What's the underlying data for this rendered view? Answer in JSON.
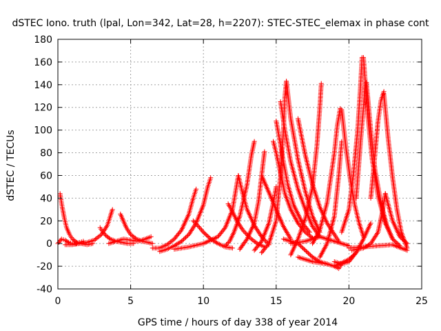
{
  "chart_data": {
    "type": "scatter",
    "title": "dSTEC Iono. truth (lpal, Lon=342, Lat=28, h=2207): STEC-STEC_elemax in phase cont",
    "xlabel": "GPS time / hours of day 338 of year 2014",
    "ylabel": "dSTEC  / TECUs",
    "xlim": [
      0,
      25
    ],
    "ylim": [
      -40,
      180
    ],
    "xticks": [
      0,
      5,
      10,
      15,
      20,
      25
    ],
    "yticks": [
      -40,
      -20,
      0,
      20,
      40,
      60,
      80,
      100,
      120,
      140,
      160,
      180
    ],
    "grid": true,
    "marker": "+",
    "color": "#ff0000",
    "series": [
      {
        "x": [
          0.0,
          0.25,
          0.5,
          0.75,
          1.0,
          1.25,
          1.5,
          1.75
        ],
        "y": [
          0,
          4,
          3,
          1,
          0,
          0,
          1,
          2
        ]
      },
      {
        "x": [
          0.15,
          0.3,
          0.45,
          0.6,
          0.8,
          1.0,
          1.3,
          1.6,
          2.0,
          2.4
        ],
        "y": [
          44,
          32,
          22,
          14,
          8,
          4,
          1,
          0,
          -1,
          0
        ]
      },
      {
        "x": [
          0.5,
          1.0,
          1.5,
          2.0,
          2.5,
          3.0,
          3.4,
          3.6,
          3.75
        ],
        "y": [
          -1,
          -1,
          0,
          1,
          3,
          8,
          16,
          24,
          30
        ]
      },
      {
        "x": [
          2.9,
          3.1,
          3.3,
          3.6,
          4.0,
          4.4,
          4.8,
          5.2
        ],
        "y": [
          14,
          10,
          7,
          4,
          2,
          1,
          0,
          0
        ]
      },
      {
        "x": [
          4.3,
          4.5,
          4.7,
          5.0,
          5.4,
          5.8,
          6.2,
          6.5
        ],
        "y": [
          26,
          20,
          14,
          8,
          4,
          2,
          1,
          0
        ]
      },
      {
        "x": [
          3.5,
          4.0,
          4.5,
          5.0,
          5.5,
          6.0,
          6.4
        ],
        "y": [
          0,
          2,
          4,
          3,
          2,
          4,
          6
        ]
      },
      {
        "x": [
          6.5,
          7.0,
          7.5,
          8.0,
          8.5,
          9.0,
          9.3,
          9.5
        ],
        "y": [
          -4,
          -4,
          -1,
          4,
          12,
          26,
          40,
          48
        ]
      },
      {
        "x": [
          7.0,
          7.5,
          8.0,
          8.5,
          9.0,
          9.5,
          10.0,
          10.3,
          10.5
        ],
        "y": [
          -7,
          -5,
          -2,
          2,
          8,
          18,
          34,
          50,
          58
        ]
      },
      {
        "x": [
          9.3,
          9.6,
          10.0,
          10.5,
          11.0,
          11.5,
          12.0
        ],
        "y": [
          20,
          16,
          10,
          4,
          0,
          -3,
          -4
        ]
      },
      {
        "x": [
          8.0,
          9.0,
          10.0,
          11.0,
          11.5,
          12.0,
          12.2,
          12.4
        ],
        "y": [
          -5,
          -3,
          0,
          6,
          14,
          30,
          45,
          60
        ]
      },
      {
        "x": [
          11.5,
          11.8,
          12.1,
          12.5,
          13.0,
          13.3,
          13.5
        ],
        "y": [
          -2,
          2,
          10,
          24,
          52,
          78,
          90
        ]
      },
      {
        "x": [
          12.4,
          12.7,
          13.0,
          13.5,
          14.0,
          14.5
        ],
        "y": [
          60,
          44,
          30,
          16,
          6,
          -1
        ]
      },
      {
        "x": [
          11.7,
          12.0,
          12.3,
          12.7,
          13.2,
          13.7,
          14.2
        ],
        "y": [
          35,
          28,
          20,
          12,
          5,
          0,
          -3
        ]
      },
      {
        "x": [
          12.5,
          13.0,
          13.5,
          13.8,
          14.0,
          14.2
        ],
        "y": [
          -5,
          4,
          18,
          38,
          60,
          81
        ]
      },
      {
        "x": [
          13.5,
          14.0,
          14.5,
          14.8,
          15.0
        ],
        "y": [
          -6,
          2,
          18,
          36,
          50
        ]
      },
      {
        "x": [
          14.8,
          15.0,
          15.3,
          15.6,
          16.0,
          16.5,
          17.0,
          17.5
        ],
        "y": [
          90,
          80,
          62,
          44,
          30,
          18,
          10,
          5
        ]
      },
      {
        "x": [
          15.0,
          15.2,
          15.5,
          15.8,
          16.2,
          16.8,
          17.3
        ],
        "y": [
          108,
          94,
          72,
          52,
          34,
          18,
          10
        ]
      },
      {
        "x": [
          15.3,
          15.6,
          16.0,
          16.5,
          17.0,
          17.5,
          18.0
        ],
        "y": [
          125,
          100,
          72,
          48,
          30,
          15,
          6
        ]
      },
      {
        "x": [
          15.7,
          16.0,
          16.5,
          17.0,
          17.5,
          18.0
        ],
        "y": [
          143,
          110,
          74,
          46,
          24,
          10
        ]
      },
      {
        "x": [
          14.0,
          14.5,
          15.0,
          15.3,
          15.5,
          15.6,
          15.7
        ],
        "y": [
          -8,
          0,
          20,
          60,
          100,
          130,
          143
        ]
      },
      {
        "x": [
          14.0,
          14.5,
          15.0,
          15.5,
          16.0
        ],
        "y": [
          60,
          45,
          30,
          15,
          4
        ]
      },
      {
        "x": [
          16.5,
          17.0,
          17.5,
          18.0,
          18.5,
          19.0,
          19.3
        ],
        "y": [
          110,
          78,
          52,
          32,
          18,
          8,
          2
        ]
      },
      {
        "x": [
          16.0,
          16.5,
          17.0,
          17.5,
          17.8,
          18.0,
          18.1
        ],
        "y": [
          -10,
          4,
          22,
          50,
          86,
          120,
          141
        ]
      },
      {
        "x": [
          15.5,
          16.5,
          17.0,
          17.5,
          18.0,
          18.5
        ],
        "y": [
          4,
          0,
          -6,
          -12,
          -16,
          -18
        ]
      },
      {
        "x": [
          16.5,
          17.5,
          18.5,
          19.0,
          19.3,
          19.5
        ],
        "y": [
          -12,
          -16,
          -18,
          -20,
          -22,
          -18
        ]
      },
      {
        "x": [
          17.5,
          18.0,
          18.5,
          19.0,
          19.2,
          19.4
        ],
        "y": [
          0,
          12,
          36,
          80,
          104,
          119
        ]
      },
      {
        "x": [
          18.0,
          18.5,
          19.0,
          19.3,
          19.5
        ],
        "y": [
          -12,
          0,
          24,
          60,
          90
        ]
      },
      {
        "x": [
          19.5,
          19.8,
          20.1,
          20.4,
          20.7,
          21.0
        ],
        "y": [
          118,
          84,
          56,
          34,
          18,
          6
        ]
      },
      {
        "x": [
          19.0,
          19.5,
          20.0,
          20.5,
          21.0,
          21.5
        ],
        "y": [
          -16,
          -18,
          -16,
          -8,
          4,
          18
        ]
      },
      {
        "x": [
          19.5,
          20.0,
          20.3,
          20.6,
          20.8,
          20.9
        ],
        "y": [
          10,
          30,
          60,
          100,
          140,
          164
        ]
      },
      {
        "x": [
          21.0,
          21.3,
          21.6,
          22.0,
          22.5,
          23.0
        ],
        "y": [
          164,
          112,
          74,
          42,
          18,
          4
        ]
      },
      {
        "x": [
          20.5,
          20.8,
          21.0,
          21.1,
          21.2
        ],
        "y": [
          40,
          90,
          120,
          138,
          142
        ]
      },
      {
        "x": [
          21.2,
          21.5,
          21.8,
          22.2,
          22.6,
          23.0,
          23.5
        ],
        "y": [
          142,
          100,
          64,
          36,
          16,
          4,
          -2
        ]
      },
      {
        "x": [
          21.5,
          21.8,
          22.0,
          22.2,
          22.4
        ],
        "y": [
          40,
          80,
          108,
          126,
          134
        ]
      },
      {
        "x": [
          22.4,
          22.7,
          23.0,
          23.3,
          23.6,
          24.0
        ],
        "y": [
          132,
          92,
          58,
          30,
          10,
          -4
        ]
      },
      {
        "x": [
          20.2,
          21.0,
          21.5,
          22.0,
          22.3,
          22.5
        ],
        "y": [
          -6,
          -4,
          0,
          10,
          28,
          44
        ]
      },
      {
        "x": [
          22.5,
          23.0,
          23.5,
          24.0
        ],
        "y": [
          44,
          20,
          6,
          0
        ]
      },
      {
        "x": [
          20.0,
          21.0,
          22.0,
          23.0,
          24.0
        ],
        "y": [
          -4,
          -3,
          -2,
          -1,
          -6
        ]
      },
      {
        "x": [
          19.0,
          20.0,
          20.5
        ],
        "y": [
          -20,
          -14,
          -8
        ]
      },
      {
        "x": [
          16.0,
          17.0,
          18.0,
          19.0,
          20.0
        ],
        "y": [
          0,
          2,
          6,
          2,
          -2
        ]
      }
    ]
  }
}
